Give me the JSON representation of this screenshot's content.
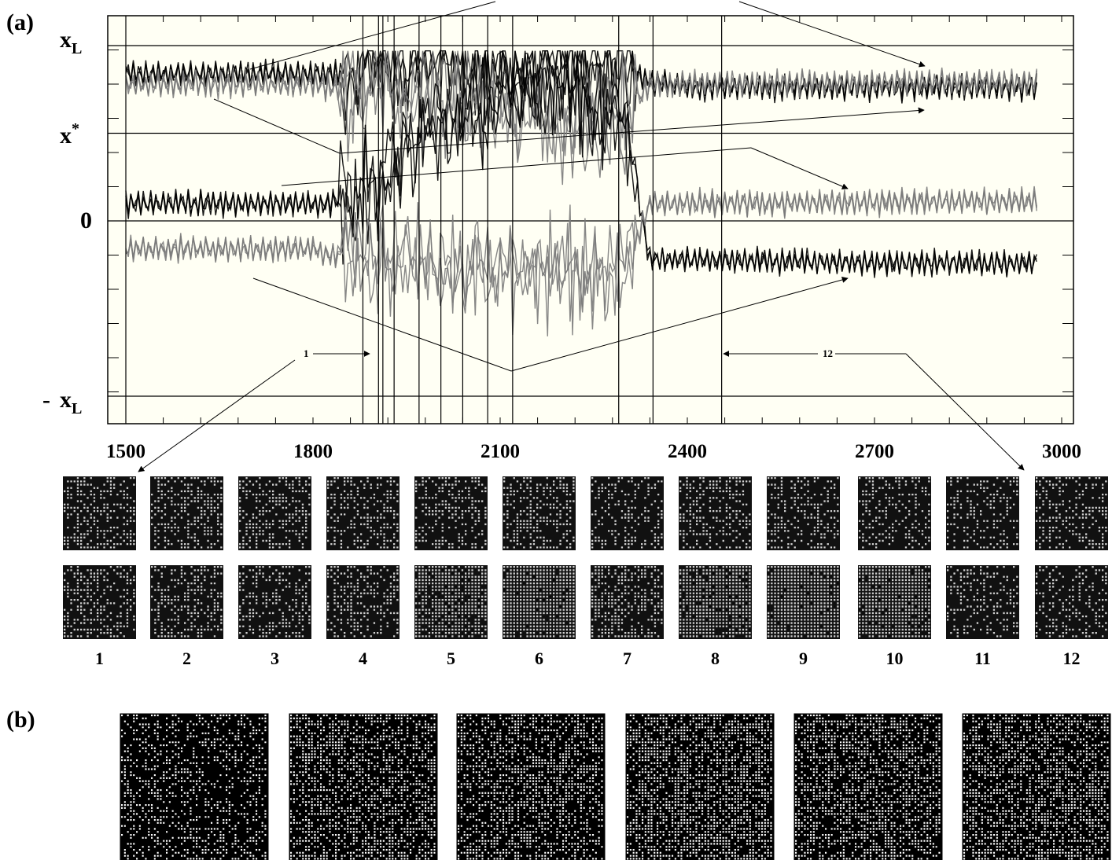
{
  "panels": {
    "a": "(a)",
    "b": "(b)"
  },
  "y_labels": {
    "xL": {
      "main": "x",
      "sub": "L"
    },
    "xstar": {
      "main": "x",
      "sup": "*"
    },
    "zero": "0",
    "neg_xL": {
      "sign": "-",
      "main": "x",
      "sub": "L"
    }
  },
  "snapshot_labels": [
    "1",
    "2",
    "3",
    "4",
    "5",
    "6",
    "7",
    "8",
    "9",
    "10",
    "11",
    "12"
  ],
  "markers": {
    "first": "1",
    "last": "12"
  },
  "colors": {
    "dark": "#000000",
    "gray": "#7a7a7a",
    "plot_bg": "#fffff4",
    "snap_bg": "#111111"
  },
  "chart_data": {
    "type": "line",
    "x_ticks": [
      1500,
      1800,
      2100,
      2400,
      2700,
      3000
    ],
    "xlim": [
      1470,
      3000
    ],
    "y_levels": {
      "xL": 1.0,
      "xstar": 0.5,
      "zero": 0.0,
      "neg_xL": -1.0
    },
    "ylim": [
      -1.12,
      1.12
    ],
    "snapshot_times": [
      1880,
      1905,
      1912,
      1930,
      1970,
      2005,
      2040,
      2080,
      2120,
      2290,
      2345,
      2455
    ],
    "series": [
      {
        "name": "",
        "x": [
          1500,
          1800,
          1830,
          1900,
          2000,
          2100,
          2200,
          2300,
          2340,
          2400,
          2700,
          2960
        ],
        "y": [
          0.84,
          0.84,
          0.84,
          0.86,
          0.88,
          0.88,
          0.88,
          0.86,
          0.8,
          0.76,
          0.76,
          0.76
        ]
      },
      {
        "name": "",
        "x": [
          1500,
          1800,
          1830,
          1900,
          2000,
          2100,
          2200,
          2300,
          2340,
          2400,
          2700,
          2960
        ],
        "y": [
          0.78,
          0.78,
          0.76,
          0.75,
          0.7,
          0.62,
          0.55,
          0.6,
          0.78,
          0.78,
          0.79,
          0.79
        ]
      },
      {
        "name": "",
        "x": [
          1500,
          1800,
          1830,
          1900,
          2000,
          2100,
          2200,
          2300,
          2340,
          2400,
          2700,
          2960
        ],
        "y": [
          0.1,
          0.1,
          0.1,
          0.25,
          0.55,
          0.75,
          0.78,
          0.55,
          -0.22,
          -0.22,
          -0.24,
          -0.24
        ]
      },
      {
        "name": "",
        "x": [
          1500,
          1800,
          1830,
          1900,
          2000,
          2100,
          2200,
          2300,
          2340,
          2400,
          2700,
          2960
        ],
        "y": [
          -0.16,
          -0.16,
          -0.2,
          -0.22,
          -0.25,
          -0.3,
          -0.3,
          -0.28,
          0.1,
          0.1,
          0.11,
          0.11
        ]
      }
    ]
  }
}
